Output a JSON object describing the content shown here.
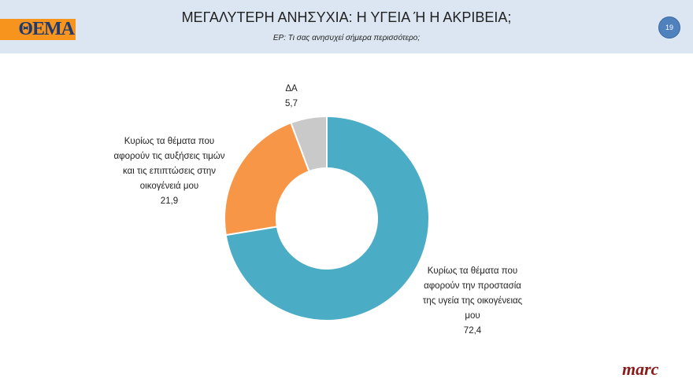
{
  "header": {
    "logo_text": "ΘΕΜΑ",
    "title": "ΜΕΓΑΛΥΤΕΡΗ ΑΝΗΣΥΧΙΑ: Η ΥΓΕΙΑ Ή Η ΑΚΡΙΒΕΙΑ;",
    "subtitle": "ΕΡ:  Τι σας ανησυχεί σήμερα περισσότερο;",
    "page_number": "19"
  },
  "footer": {
    "brand": "marc"
  },
  "chart_data": {
    "type": "pie",
    "donut": true,
    "title": "ΜΕΓΑΛΥΤΕΡΗ ΑΝΗΣΥΧΙΑ: Η ΥΓΕΙΑ Ή Η ΑΚΡΙΒΕΙΑ;",
    "categories": [
      "Κυρίως τα θέματα που αφορούν την προστασία της υγεία της οικογένειας μου",
      "Κυρίως τα θέματα που αφορούν τις αυξήσεις τιμών και τις επιπτώσεις στην οικογένειά μου",
      "ΔΑ"
    ],
    "values": [
      72.4,
      21.9,
      5.7
    ],
    "value_labels": [
      "72,4",
      "21,9",
      "5,7"
    ],
    "colors": [
      "#4bacc6",
      "#f79646",
      "#c9c9c9"
    ]
  }
}
